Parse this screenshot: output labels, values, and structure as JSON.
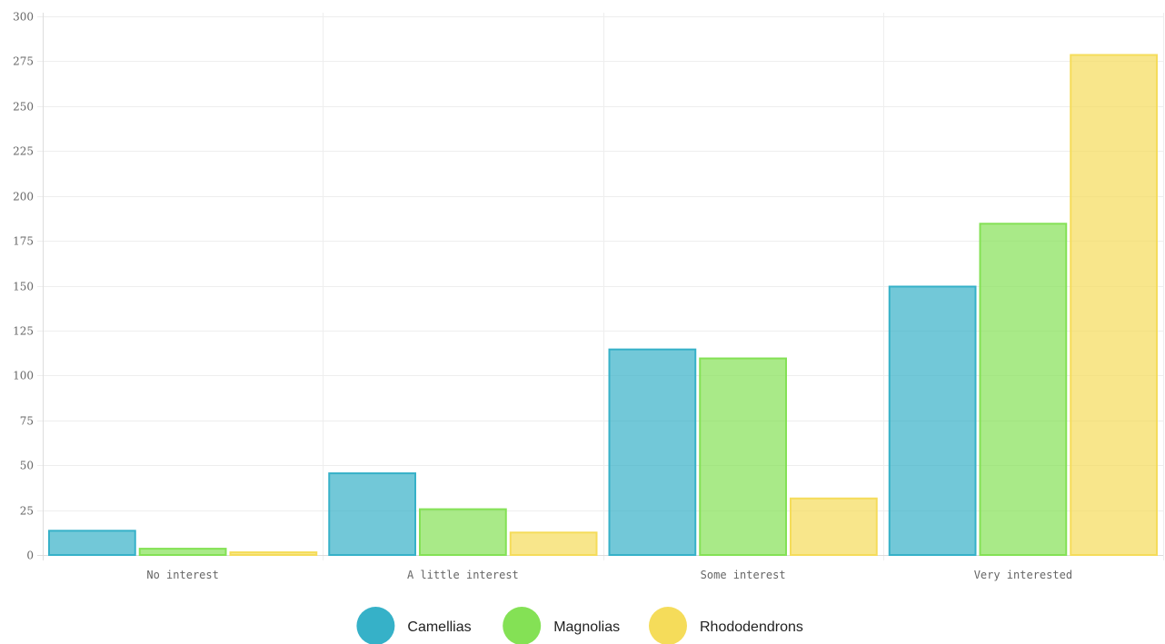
{
  "chart_data": {
    "type": "bar",
    "categories": [
      "No interest",
      "A little interest",
      "Some interest",
      "Very interested"
    ],
    "series": [
      {
        "name": "Camellias",
        "values": [
          14,
          46,
          115,
          150
        ],
        "color": "#36b1c8"
      },
      {
        "name": "Magnolias",
        "values": [
          4,
          26,
          110,
          185
        ],
        "color": "#84e155"
      },
      {
        "name": "Rhododendrons",
        "values": [
          2,
          13,
          32,
          279
        ],
        "color": "#f5dc5a"
      }
    ],
    "title": "",
    "xlabel": "",
    "ylabel": "",
    "ylim": [
      0,
      300
    ],
    "yticks": [
      0,
      25,
      50,
      75,
      100,
      125,
      150,
      175,
      200,
      225,
      250,
      275,
      300
    ],
    "grid": true,
    "legend": "bottom-center"
  }
}
